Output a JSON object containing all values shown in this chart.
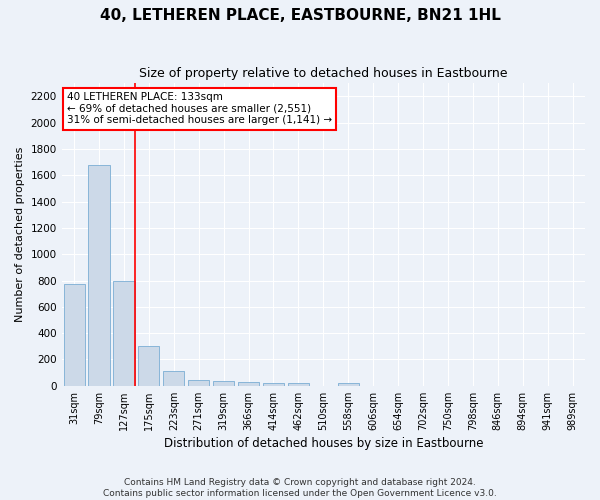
{
  "title": "40, LETHEREN PLACE, EASTBOURNE, BN21 1HL",
  "subtitle": "Size of property relative to detached houses in Eastbourne",
  "xlabel": "Distribution of detached houses by size in Eastbourne",
  "ylabel": "Number of detached properties",
  "categories": [
    "31sqm",
    "79sqm",
    "127sqm",
    "175sqm",
    "223sqm",
    "271sqm",
    "319sqm",
    "366sqm",
    "414sqm",
    "462sqm",
    "510sqm",
    "558sqm",
    "606sqm",
    "654sqm",
    "702sqm",
    "750sqm",
    "798sqm",
    "846sqm",
    "894sqm",
    "941sqm",
    "989sqm"
  ],
  "values": [
    770,
    1680,
    800,
    300,
    110,
    45,
    35,
    28,
    22,
    20,
    0,
    22,
    0,
    0,
    0,
    0,
    0,
    0,
    0,
    0,
    0
  ],
  "bar_color": "#ccd9e8",
  "bar_edge_color": "#7aadd4",
  "annotation_text": "40 LETHEREN PLACE: 133sqm\n← 69% of detached houses are smaller (2,551)\n31% of semi-detached houses are larger (1,141) →",
  "annotation_box_color": "white",
  "annotation_box_edge_color": "red",
  "vline_color": "red",
  "vline_x": 2.43,
  "ylim": [
    0,
    2300
  ],
  "yticks": [
    0,
    200,
    400,
    600,
    800,
    1000,
    1200,
    1400,
    1600,
    1800,
    2000,
    2200
  ],
  "footer_line1": "Contains HM Land Registry data © Crown copyright and database right 2024.",
  "footer_line2": "Contains public sector information licensed under the Open Government Licence v3.0.",
  "bg_color": "#edf2f9",
  "plot_bg_color": "#edf2f9",
  "title_fontsize": 11,
  "subtitle_fontsize": 9,
  "ylabel_fontsize": 8,
  "xlabel_fontsize": 8.5,
  "tick_fontsize": 7,
  "footer_fontsize": 6.5,
  "ann_fontsize": 7.5
}
